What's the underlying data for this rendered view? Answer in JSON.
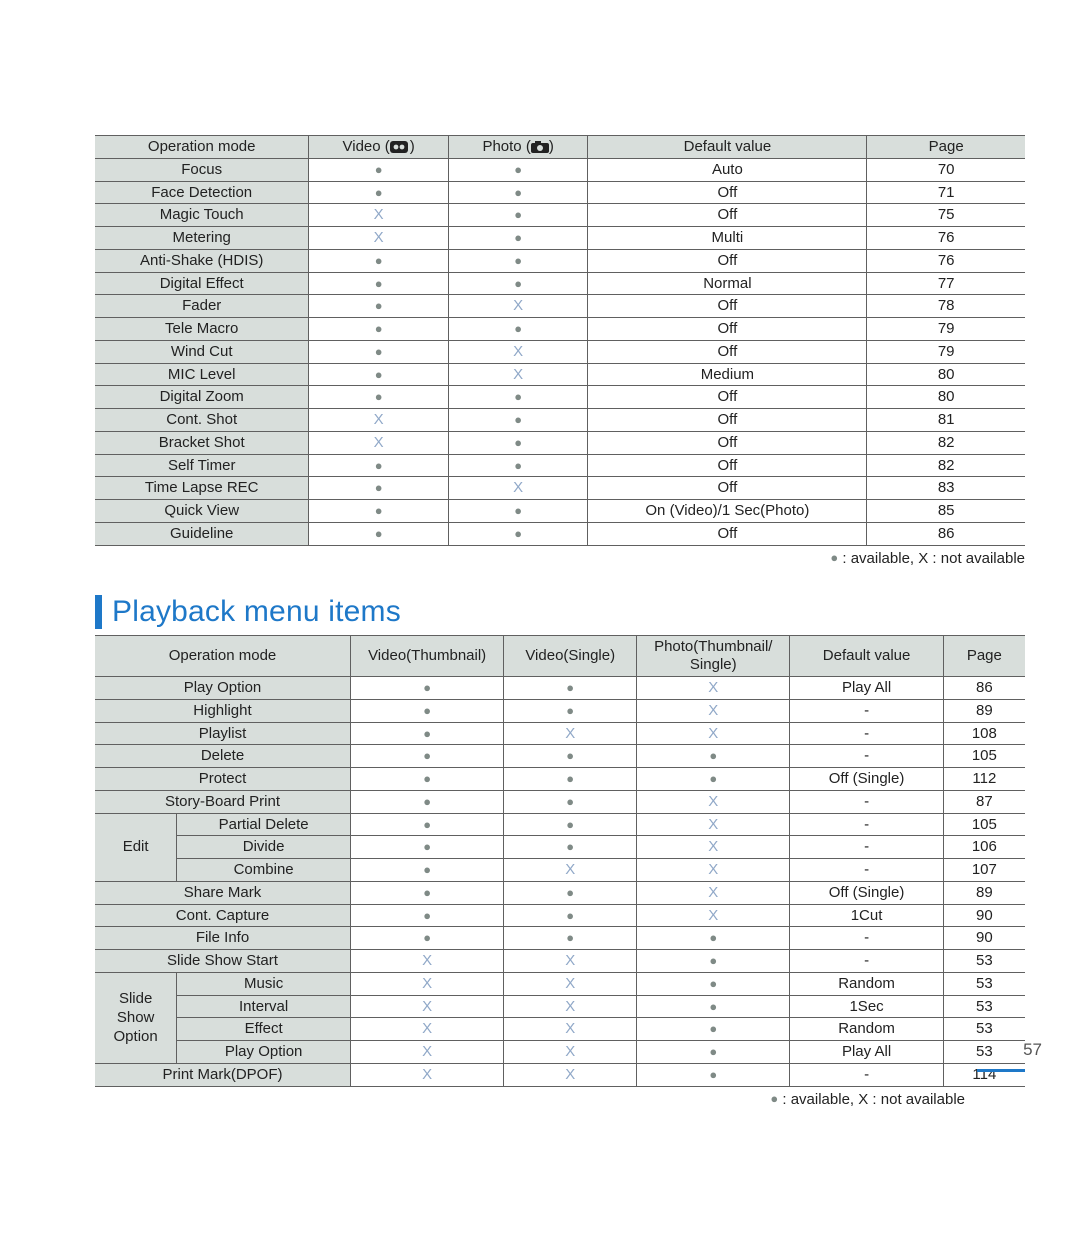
{
  "colors": {
    "accent": "#1e78c8",
    "header_bg": "#d8dedb",
    "border": "#606060",
    "dot": "#7f8a86",
    "x": "#90a8c8",
    "text": "#222222",
    "bg": "#ffffff"
  },
  "legend": {
    "available": "available",
    "not_available": "not available",
    "sep": ", X : "
  },
  "page_number": "57",
  "section2_title": "Playback menu items",
  "t1": {
    "cols": {
      "c0": "Operation mode",
      "c1_pre": "Video (",
      "c1_post": ")",
      "c2_pre": "Photo (",
      "c2_post": ")",
      "c3": "Default value",
      "c4": "Page"
    },
    "widths_pct": [
      23,
      15,
      15,
      30,
      17
    ],
    "rows": [
      {
        "label": "Focus",
        "v": "dot",
        "p": "dot",
        "def": "Auto",
        "pg": "70"
      },
      {
        "label": "Face Detection",
        "v": "dot",
        "p": "dot",
        "def": "Off",
        "pg": "71"
      },
      {
        "label": "Magic Touch",
        "v": "x",
        "p": "dot",
        "def": "Off",
        "pg": "75"
      },
      {
        "label": "Metering",
        "v": "x",
        "p": "dot",
        "def": "Multi",
        "pg": "76"
      },
      {
        "label": "Anti-Shake (HDIS)",
        "v": "dot",
        "p": "dot",
        "def": "Off",
        "pg": "76"
      },
      {
        "label": "Digital Effect",
        "v": "dot",
        "p": "dot",
        "def": "Normal",
        "pg": "77"
      },
      {
        "label": "Fader",
        "v": "dot",
        "p": "x",
        "def": "Off",
        "pg": "78"
      },
      {
        "label": "Tele Macro",
        "v": "dot",
        "p": "dot",
        "def": "Off",
        "pg": "79"
      },
      {
        "label": "Wind Cut",
        "v": "dot",
        "p": "x",
        "def": "Off",
        "pg": "79"
      },
      {
        "label": "MIC Level",
        "v": "dot",
        "p": "x",
        "def": "Medium",
        "pg": "80"
      },
      {
        "label": "Digital Zoom",
        "v": "dot",
        "p": "dot",
        "def": "Off",
        "pg": "80"
      },
      {
        "label": "Cont. Shot",
        "v": "x",
        "p": "dot",
        "def": "Off",
        "pg": "81"
      },
      {
        "label": "Bracket Shot",
        "v": "x",
        "p": "dot",
        "def": "Off",
        "pg": "82"
      },
      {
        "label": "Self Timer",
        "v": "dot",
        "p": "dot",
        "def": "Off",
        "pg": "82"
      },
      {
        "label": "Time Lapse REC",
        "v": "dot",
        "p": "x",
        "def": "Off",
        "pg": "83"
      },
      {
        "label": "Quick View",
        "v": "dot",
        "p": "dot",
        "def": "On (Video)/1 Sec(Photo)",
        "pg": "85"
      },
      {
        "label": "Guideline",
        "v": "dot",
        "p": "dot",
        "def": "Off",
        "pg": "86"
      }
    ]
  },
  "t2": {
    "cols": {
      "c0": "Operation mode",
      "c1": "Video(Thumbnail)",
      "c2": "Video(Single)",
      "c3a": "Photo(Thumbnail/",
      "c3b": "Single)",
      "c4": "Default value",
      "c5": "Page"
    },
    "widths_pct": [
      8,
      17,
      15,
      13,
      15,
      15,
      8
    ],
    "group_edit": "Edit",
    "group_slide_a": "Slide",
    "group_slide_b": "Show",
    "group_slide_c": "Option",
    "rows": [
      {
        "label": "Play Option",
        "a": "dot",
        "b": "dot",
        "c": "x",
        "def": "Play All",
        "pg": "86"
      },
      {
        "label": "Highlight",
        "a": "dot",
        "b": "dot",
        "c": "x",
        "def": "-",
        "pg": "89"
      },
      {
        "label": "Playlist",
        "a": "dot",
        "b": "x",
        "c": "x",
        "def": "-",
        "pg": "108"
      },
      {
        "label": "Delete",
        "a": "dot",
        "b": "dot",
        "c": "dot",
        "def": "-",
        "pg": "105"
      },
      {
        "label": "Protect",
        "a": "dot",
        "b": "dot",
        "c": "dot",
        "def": "Off (Single)",
        "pg": "112"
      },
      {
        "label": "Story-Board Print",
        "a": "dot",
        "b": "dot",
        "c": "x",
        "def": "-",
        "pg": "87"
      },
      {
        "label": "Partial Delete",
        "a": "dot",
        "b": "dot",
        "c": "x",
        "def": "-",
        "pg": "105"
      },
      {
        "label": "Divide",
        "a": "dot",
        "b": "dot",
        "c": "x",
        "def": "-",
        "pg": "106"
      },
      {
        "label": "Combine",
        "a": "dot",
        "b": "x",
        "c": "x",
        "def": "-",
        "pg": "107"
      },
      {
        "label": "Share Mark",
        "a": "dot",
        "b": "dot",
        "c": "x",
        "def": "Off (Single)",
        "pg": "89"
      },
      {
        "label": "Cont. Capture",
        "a": "dot",
        "b": "dot",
        "c": "x",
        "def": "1Cut",
        "pg": "90"
      },
      {
        "label": "File Info",
        "a": "dot",
        "b": "dot",
        "c": "dot",
        "def": "-",
        "pg": "90"
      },
      {
        "label": "Slide Show Start",
        "a": "x",
        "b": "x",
        "c": "dot",
        "def": "-",
        "pg": "53"
      },
      {
        "label": "Music",
        "a": "x",
        "b": "x",
        "c": "dot",
        "def": "Random",
        "pg": "53"
      },
      {
        "label": "Interval",
        "a": "x",
        "b": "x",
        "c": "dot",
        "def": "1Sec",
        "pg": "53"
      },
      {
        "label": "Effect",
        "a": "x",
        "b": "x",
        "c": "dot",
        "def": "Random",
        "pg": "53"
      },
      {
        "label": "Play Option",
        "a": "x",
        "b": "x",
        "c": "dot",
        "def": "Play All",
        "pg": "53"
      },
      {
        "label": "Print Mark(DPOF)",
        "a": "x",
        "b": "x",
        "c": "dot",
        "def": "-",
        "pg": "114"
      }
    ]
  }
}
